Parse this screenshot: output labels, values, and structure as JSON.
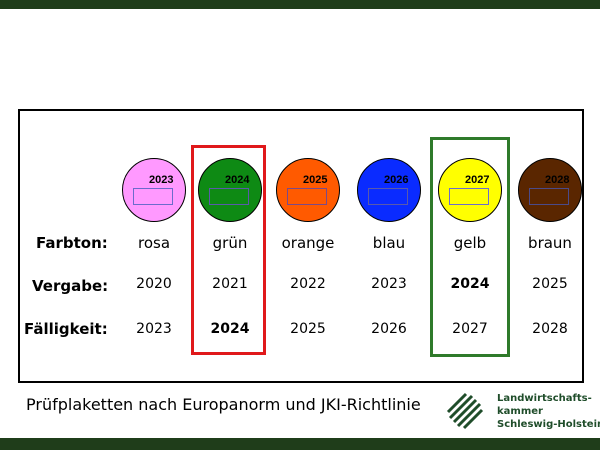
{
  "slide": {
    "caption": "Prüfplaketten nach Europanorm und JKI-Richtlinie",
    "organization": [
      "Landwirtschafts-",
      "kammer",
      "Schleswig-Holstein"
    ]
  },
  "labels": {
    "color": "Farbton:",
    "issue": "Vergabe:",
    "due": "Fälligkeit:"
  },
  "colors": {
    "frame": "#1f3d1a",
    "highlight_due": "#e0181b",
    "highlight_issue": "#2f7a2a"
  },
  "badges": [
    {
      "year": "2023",
      "fill": "#ff99ff",
      "box_border": "#6b6bcc",
      "color_name": "rosa",
      "issue": "2020",
      "due": "2023"
    },
    {
      "year": "2024",
      "fill": "#0e8a14",
      "box_border": "#5a5aaa",
      "color_name": "grün",
      "issue": "2021",
      "due": "2024"
    },
    {
      "year": "2025",
      "fill": "#ff5a00",
      "box_border": "#7a4a8a",
      "color_name": "orange",
      "issue": "2022",
      "due": "2025"
    },
    {
      "year": "2026",
      "fill": "#0a2bff",
      "box_border": "#5a5aaa",
      "color_name": "blau",
      "issue": "2023",
      "due": "2026"
    },
    {
      "year": "2027",
      "fill": "#ffff00",
      "box_border": "#6b6bcc",
      "color_name": "gelb",
      "issue": "2024",
      "due": "2027"
    },
    {
      "year": "2028",
      "fill": "#5a2600",
      "box_border": "#4a4a8a",
      "color_name": "braun",
      "issue": "2025",
      "due": "2028"
    }
  ],
  "highlights": {
    "due_index": 1,
    "issue_index": 4
  }
}
